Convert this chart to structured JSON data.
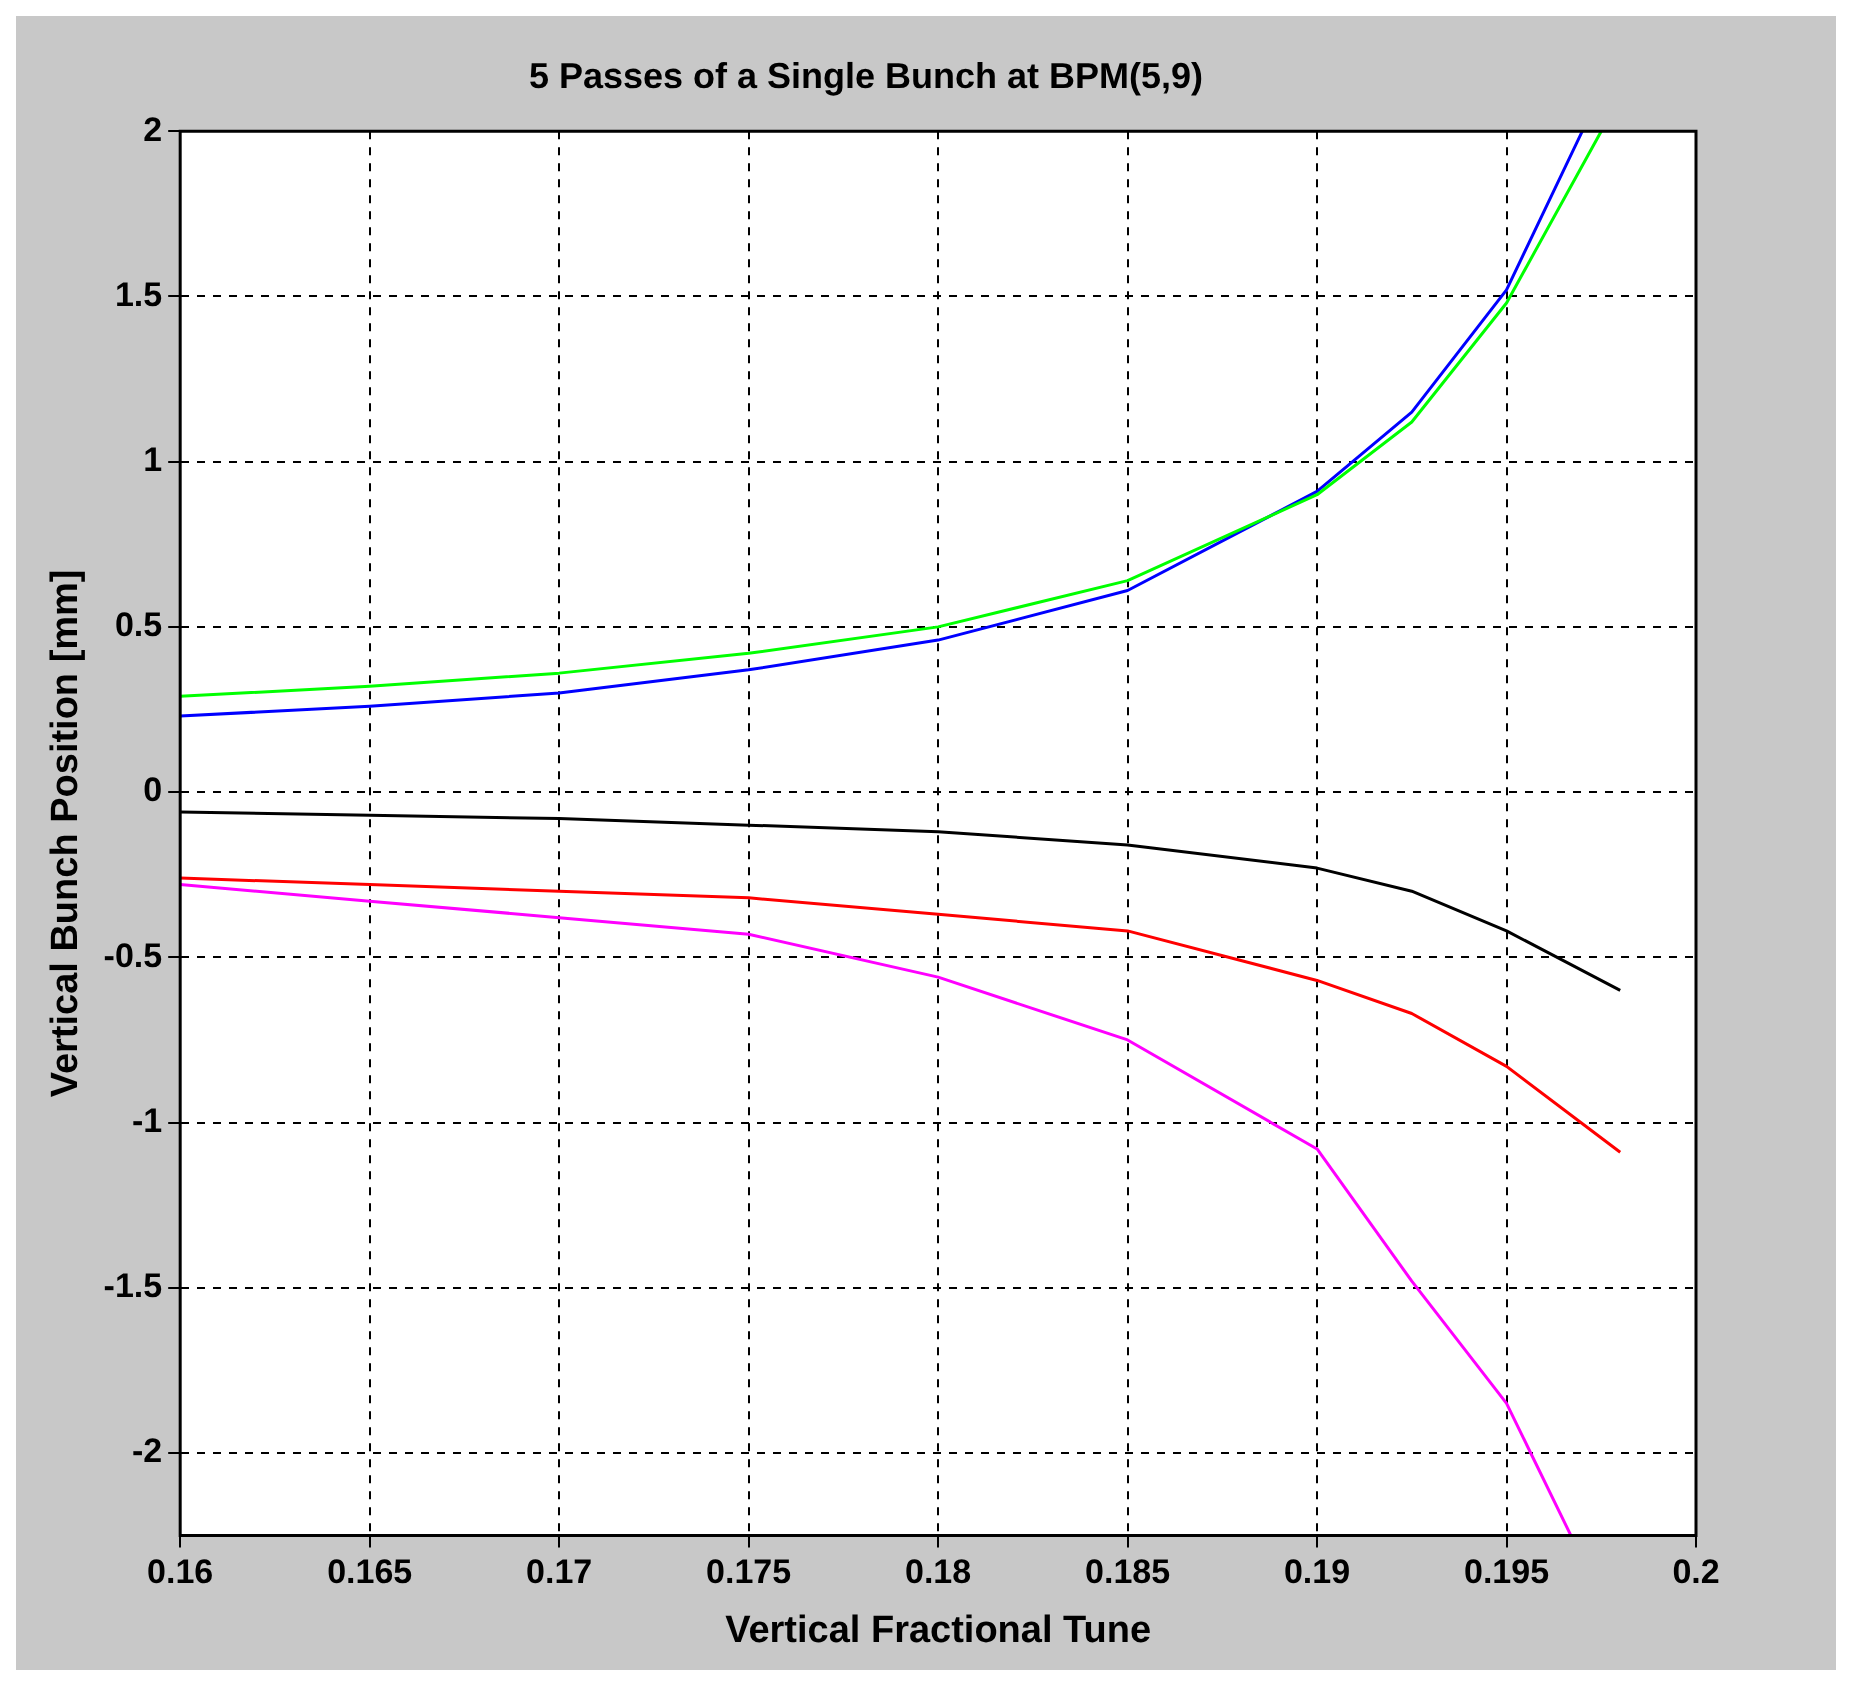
{
  "chart_data": {
    "type": "line",
    "title": "5 Passes of a Single Bunch at BPM(5,9)",
    "xlabel": "Vertical Fractional Tune",
    "ylabel": "Vertical Bunch Position [mm]",
    "xlim": [
      0.16,
      0.2
    ],
    "xticks": [
      0.16,
      0.165,
      0.17,
      0.175,
      0.18,
      0.185,
      0.19,
      0.195,
      0.2
    ],
    "ylim": [
      -2.25,
      2
    ],
    "yticks": [
      -2,
      -1.5,
      -1,
      -0.5,
      0,
      0.5,
      1,
      1.5,
      2
    ],
    "grid": true,
    "line_style": "solid",
    "marker": "none",
    "series": [
      {
        "color": "#00ff00",
        "x": [
          0.16,
          0.165,
          0.17,
          0.175,
          0.18,
          0.185,
          0.19,
          0.1925,
          0.195,
          0.1975
        ],
        "values": [
          0.29,
          0.32,
          0.36,
          0.42,
          0.5,
          0.64,
          0.9,
          1.12,
          1.48,
          2.0
        ]
      },
      {
        "color": "#0000ff",
        "x": [
          0.16,
          0.165,
          0.17,
          0.175,
          0.18,
          0.185,
          0.19,
          0.1925,
          0.195,
          0.197
        ],
        "values": [
          0.23,
          0.26,
          0.3,
          0.37,
          0.46,
          0.61,
          0.91,
          1.15,
          1.52,
          2.0
        ]
      },
      {
        "color": "#000000",
        "x": [
          0.16,
          0.165,
          0.17,
          0.175,
          0.18,
          0.185,
          0.19,
          0.1925,
          0.195,
          0.198
        ],
        "values": [
          -0.06,
          -0.07,
          -0.08,
          -0.1,
          -0.12,
          -0.16,
          -0.23,
          -0.3,
          -0.42,
          -0.6
        ]
      },
      {
        "color": "#ff0000",
        "x": [
          0.16,
          0.165,
          0.17,
          0.175,
          0.18,
          0.185,
          0.19,
          0.1925,
          0.195,
          0.198
        ],
        "values": [
          -0.26,
          -0.28,
          -0.3,
          -0.32,
          -0.37,
          -0.42,
          -0.57,
          -0.67,
          -0.83,
          -1.09
        ]
      },
      {
        "color": "#ff00ff",
        "x": [
          0.16,
          0.165,
          0.17,
          0.175,
          0.18,
          0.185,
          0.19,
          0.1925,
          0.195,
          0.1967
        ],
        "values": [
          -0.28,
          -0.33,
          -0.38,
          -0.43,
          -0.56,
          -0.75,
          -1.08,
          -1.48,
          -1.85,
          -2.25
        ]
      }
    ]
  }
}
